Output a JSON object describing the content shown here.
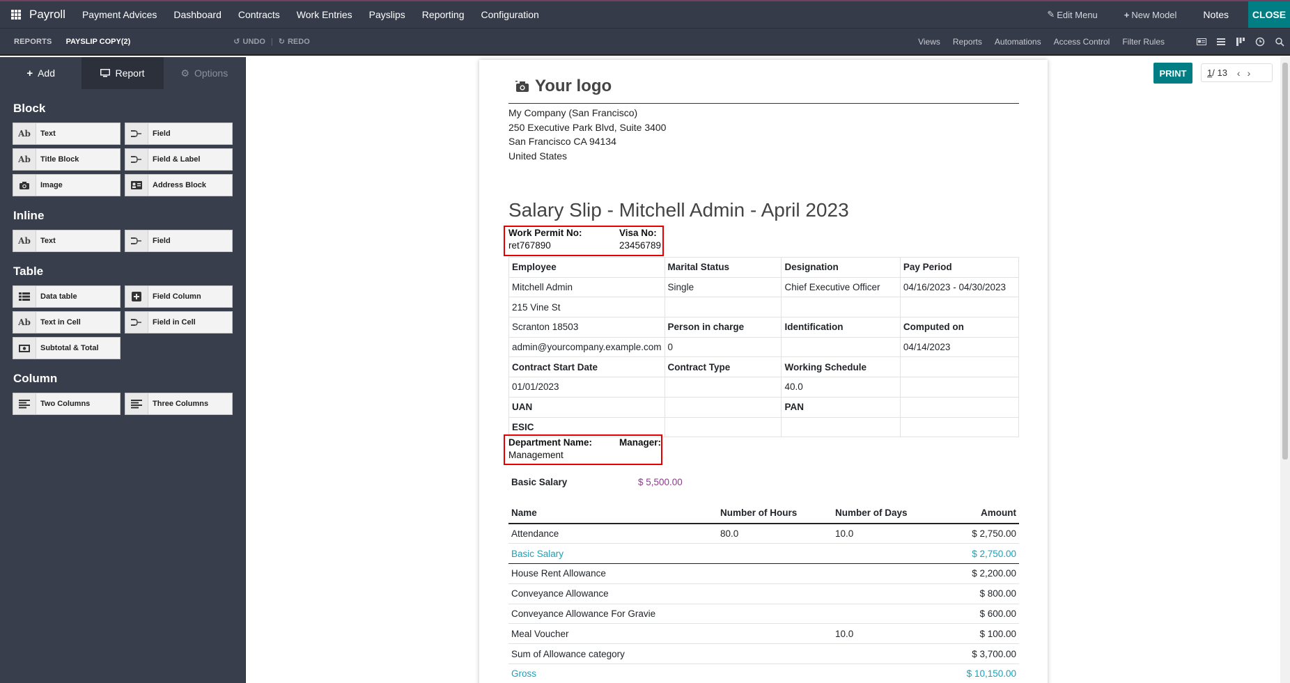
{
  "navbar": {
    "brand": "Payroll",
    "menu": [
      "Payment Advices",
      "Dashboard",
      "Contracts",
      "Work Entries",
      "Payslips",
      "Reporting",
      "Configuration"
    ],
    "edit_menu": "Edit Menu",
    "new_model": "New Model",
    "notes": "Notes",
    "close": "CLOSE"
  },
  "toolbar": {
    "reports": "REPORTS",
    "crumb": "PAYSLIP COPY(2)",
    "undo": "UNDO",
    "redo": "REDO",
    "links": [
      "Views",
      "Reports",
      "Automations",
      "Access Control",
      "Filter Rules"
    ]
  },
  "sidebar": {
    "tabs": {
      "add": "Add",
      "report": "Report",
      "options": "Options"
    },
    "sections": {
      "block": "Block",
      "inline": "Inline",
      "table": "Table",
      "column": "Column"
    },
    "block_items": [
      {
        "icon": "Ab",
        "label": "Text"
      },
      {
        "icon": "field-icon",
        "label": "Field"
      },
      {
        "icon": "Ab",
        "label": "Title Block"
      },
      {
        "icon": "field-icon",
        "label": "Field & Label"
      },
      {
        "icon": "camera-icon",
        "label": "Image"
      },
      {
        "icon": "address-card-icon",
        "label": "Address Block"
      }
    ],
    "inline_items": [
      {
        "icon": "Ab",
        "label": "Text"
      },
      {
        "icon": "field-icon",
        "label": "Field"
      }
    ],
    "table_items": [
      {
        "icon": "table-icon",
        "label": "Data table"
      },
      {
        "icon": "plus-square-icon",
        "label": "Field Column"
      },
      {
        "icon": "Ab",
        "label": "Text in Cell"
      },
      {
        "icon": "field-icon",
        "label": "Field in Cell"
      },
      {
        "icon": "money-icon",
        "label": "Subtotal & Total"
      }
    ],
    "column_items": [
      {
        "icon": "align-left-icon",
        "label": "Two Columns"
      },
      {
        "icon": "align-left-icon",
        "label": "Three Columns"
      }
    ]
  },
  "controls": {
    "print": "PRINT",
    "pager_current": "1",
    "pager_total": " / 13"
  },
  "report": {
    "logo": "Your logo",
    "company": {
      "name": "My Company (San Francisco)",
      "street": "250 Executive Park Blvd, Suite 3400",
      "city": "San Francisco CA 94134",
      "country": "United States"
    },
    "title": "Salary Slip - Mitchell Admin - April 2023",
    "permit": {
      "label": "Work Permit No:",
      "value": "ret767890",
      "visa_label": "Visa No:",
      "visa_value": "23456789"
    },
    "info_table": [
      [
        "Employee",
        "Marital Status",
        "Designation",
        "Pay Period"
      ],
      [
        "Mitchell Admin",
        "Single",
        "Chief Executive Officer",
        "04/16/2023 - 04/30/2023"
      ],
      [
        "215 Vine St",
        "",
        "",
        ""
      ],
      [
        "Scranton 18503",
        "Person in charge",
        "Identification",
        "Computed on"
      ],
      [
        "admin@yourcompany.example.com",
        "0",
        "",
        "04/14/2023"
      ],
      [
        "Contract Start Date",
        "Contract Type",
        "Working Schedule",
        ""
      ],
      [
        "01/01/2023",
        "",
        "40.0",
        ""
      ],
      [
        "UAN",
        "",
        "PAN",
        ""
      ],
      [
        "ESIC",
        "",
        "",
        ""
      ]
    ],
    "department": {
      "label": "Department Name:",
      "value": "Management",
      "manager_label": "Manager:"
    },
    "basic_salary": {
      "label": "Basic Salary",
      "value": "$ 5,500.00"
    },
    "lines_header": [
      "Name",
      "Number of Hours",
      "Number of Days",
      "Amount"
    ],
    "lines": [
      [
        "Attendance",
        "80.0",
        "10.0",
        "$ 2,750.00"
      ],
      [
        "Basic Salary",
        "",
        "",
        "$ 2,750.00"
      ],
      [
        "House Rent Allowance",
        "",
        "",
        "$ 2,200.00"
      ],
      [
        "Conveyance Allowance",
        "",
        "",
        "$ 800.00"
      ],
      [
        "Conveyance Allowance For Gravie",
        "",
        "",
        "$ 600.00"
      ],
      [
        "Meal Voucher",
        "",
        "10.0",
        "$ 100.00"
      ],
      [
        "Sum of Allowance category",
        "",
        "",
        "$ 3,700.00"
      ],
      [
        "Gross",
        "",
        "",
        "$ 10,150.00"
      ]
    ]
  }
}
